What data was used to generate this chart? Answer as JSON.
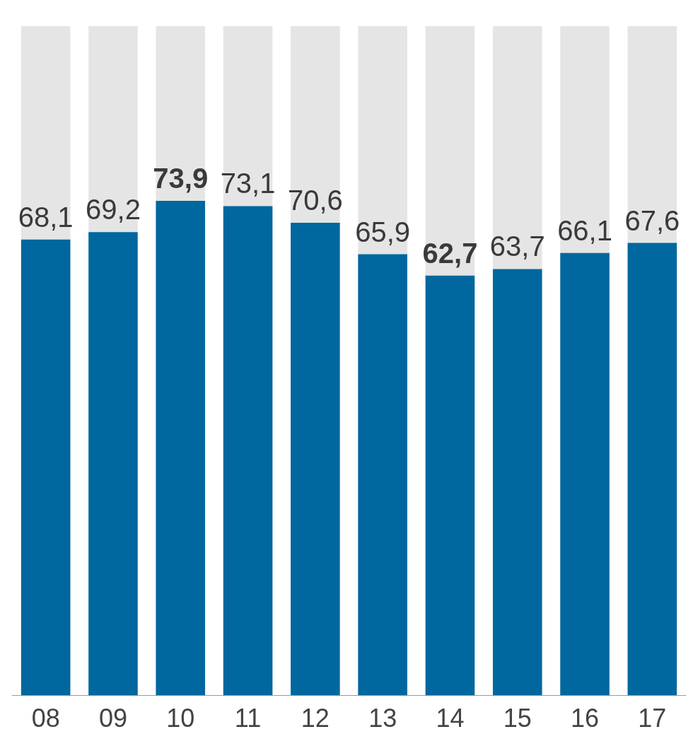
{
  "chart_data": {
    "type": "bar",
    "categories": [
      "08",
      "09",
      "10",
      "11",
      "12",
      "13",
      "14",
      "15",
      "16",
      "17"
    ],
    "values": [
      68.1,
      69.2,
      73.9,
      73.1,
      70.6,
      65.9,
      62.7,
      63.7,
      66.1,
      67.6
    ],
    "value_labels": [
      "68,1",
      "69,2",
      "73,9",
      "73,1",
      "70,6",
      "65,9",
      "62,7",
      "63,7",
      "66,1",
      "67,6"
    ],
    "color": "#00689f",
    "ylim": [
      0,
      100
    ]
  }
}
